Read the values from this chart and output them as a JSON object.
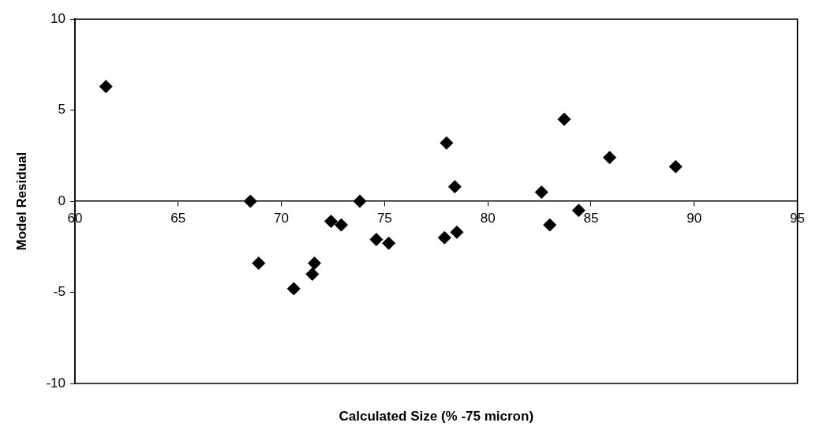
{
  "chart_data": {
    "type": "scatter",
    "xlabel": "Calculated Size (% -75 micron)",
    "ylabel": "Model Residual",
    "xlim": [
      60,
      95
    ],
    "xticks": [
      60,
      65,
      70,
      75,
      80,
      85,
      90,
      95
    ],
    "ylim": [
      -10,
      10
    ],
    "yticks": [
      -10,
      -5,
      0,
      5,
      10
    ],
    "grid": false,
    "legend": false,
    "marker": "diamond",
    "series": [
      {
        "color": "#000000",
        "x": [
          61.5,
          68.5,
          68.9,
          70.6,
          71.5,
          71.6,
          72.4,
          72.9,
          73.8,
          74.6,
          75.2,
          78.0,
          78.4,
          77.9,
          78.5,
          82.6,
          83.0,
          83.7,
          84.4,
          85.9,
          89.1
        ],
        "values": [
          6.3,
          0.0,
          -3.4,
          -4.8,
          -4.0,
          -3.4,
          -1.1,
          -1.3,
          0.0,
          -2.1,
          -2.3,
          3.2,
          0.8,
          -2.0,
          -1.7,
          0.5,
          -1.3,
          4.5,
          -0.5,
          2.4,
          1.9
        ]
      }
    ]
  }
}
